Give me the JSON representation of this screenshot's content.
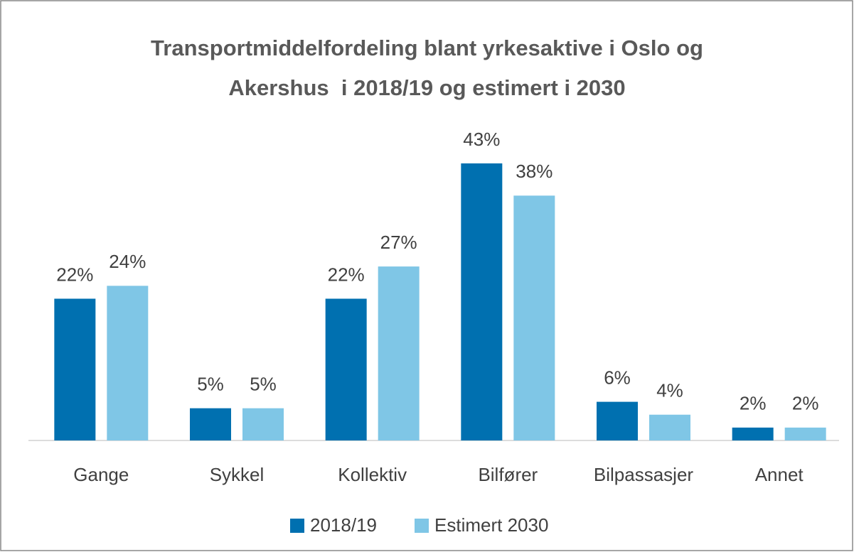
{
  "chart_data": {
    "type": "bar",
    "title": "Transportmiddelfordeling blant yrkesaktive i Oslo og Akershus  i 2018/19 og estimert i 2030",
    "categories": [
      "Gange",
      "Sykkel",
      "Kollektiv",
      "Bilfører",
      "Bilpassasjer",
      "Annet"
    ],
    "series": [
      {
        "name": "2018/19",
        "color": "#0070b0",
        "values": [
          22,
          5,
          22,
          43,
          6,
          2
        ],
        "value_labels": [
          "22%",
          "5%",
          "22%",
          "43%",
          "6%",
          "2%"
        ]
      },
      {
        "name": "Estimert 2030",
        "color": "#7fc6e6",
        "values": [
          24,
          5,
          27,
          38,
          4,
          2
        ],
        "value_labels": [
          "24%",
          "5%",
          "27%",
          "38%",
          "4%",
          "2%"
        ]
      }
    ],
    "legend": "bottom"
  }
}
